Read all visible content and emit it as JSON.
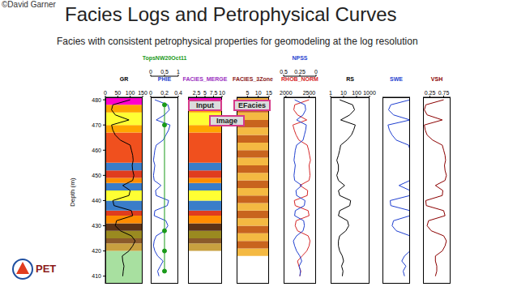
{
  "copyright": "©David Garner",
  "title": "Facies Logs and Petrophysical Curves",
  "subtitle": "Facies with consistent petrophysical properties for geomodeling at the log resolution",
  "logo_text": "PET",
  "annotations": [
    "Input",
    "EFacies",
    "Image"
  ],
  "depth_axis": {
    "label": "Depth (m)",
    "ylim": [
      407,
      481
    ],
    "yticks": [
      410,
      420,
      430,
      440,
      450,
      460,
      470,
      480
    ],
    "values": [
      410,
      412,
      414,
      416,
      418,
      420,
      422,
      424,
      426,
      428,
      430,
      432,
      434,
      436,
      438,
      440,
      442,
      444,
      446,
      448,
      450,
      452,
      454,
      456,
      458,
      460,
      462,
      464,
      466,
      468,
      470,
      472,
      474,
      476,
      478,
      480
    ]
  },
  "chart_data": [
    {
      "type": "line",
      "series": [
        {
          "name": "GR",
          "color": "#000000",
          "xlim": [
            0,
            150
          ],
          "xticks": [
            0,
            50,
            100,
            150
          ],
          "values": [
            70,
            72,
            75,
            70,
            68,
            95,
            110,
            120,
            105,
            60,
            40,
            45,
            110,
            105,
            35,
            30,
            95,
            100,
            70,
            110,
            115,
            110,
            108,
            112,
            110,
            105,
            100,
            60,
            40,
            30,
            25,
            95,
            40,
            25,
            30,
            100
          ]
        }
      ],
      "intervals": [
        {
          "top": 407,
          "base": 420,
          "color": "#a8e0a0"
        },
        {
          "top": 420,
          "base": 423,
          "color": "#c8a040"
        },
        {
          "top": 423,
          "base": 425,
          "color": "#8b5a2b"
        },
        {
          "top": 425,
          "base": 428,
          "color": "#9a8a20"
        },
        {
          "top": 428,
          "base": 431,
          "color": "#5c3317"
        },
        {
          "top": 431,
          "base": 434,
          "color": "#ff8c00"
        },
        {
          "top": 434,
          "base": 436,
          "color": "#e03c1e"
        },
        {
          "top": 436,
          "base": 440,
          "color": "#3a7dc9"
        },
        {
          "top": 440,
          "base": 444,
          "color": "#ffff33"
        },
        {
          "top": 444,
          "base": 447,
          "color": "#3a7dc9"
        },
        {
          "top": 447,
          "base": 449,
          "color": "#ff8c00"
        },
        {
          "top": 449,
          "base": 452,
          "color": "#e03c1e"
        },
        {
          "top": 452,
          "base": 455,
          "color": "#3a7dc9"
        },
        {
          "top": 455,
          "base": 467,
          "color": "#f0501e"
        },
        {
          "top": 467,
          "base": 470,
          "color": "#ffa500"
        },
        {
          "top": 470,
          "base": 475,
          "color": "#ffff33"
        },
        {
          "top": 475,
          "base": 478,
          "color": "#ffa500"
        },
        {
          "top": 478,
          "base": 481,
          "color": "#ff00cc"
        }
      ]
    },
    {
      "type": "line",
      "series": [
        {
          "name": "PHIE",
          "color": "#1f3fd0",
          "xlim": [
            0,
            0.4
          ],
          "xticks": [
            0,
            0.2,
            0.4
          ],
          "values": [
            0.12,
            0.1,
            0.14,
            0.18,
            0.1,
            0.06,
            0.04,
            0.05,
            0.08,
            0.2,
            0.25,
            0.22,
            0.05,
            0.06,
            0.24,
            0.26,
            0.08,
            0.07,
            0.15,
            0.05,
            0.04,
            0.05,
            0.06,
            0.04,
            0.05,
            0.06,
            0.08,
            0.18,
            0.22,
            0.26,
            0.28,
            0.08,
            0.2,
            0.27,
            0.25,
            0.06
          ]
        },
        {
          "name": "TopsNW20Oct11",
          "color": "#1a9a1a",
          "marker": "circle",
          "xlim": [
            0,
            1
          ],
          "xticks": [
            0,
            0.5,
            1
          ],
          "values": [
            null,
            0.5,
            null,
            null,
            null,
            0.5,
            null,
            null,
            null,
            0.5,
            null,
            null,
            null,
            null,
            null,
            null,
            null,
            null,
            null,
            null,
            null,
            null,
            null,
            null,
            null,
            null,
            null,
            null,
            null,
            null,
            0.5,
            null,
            null,
            null,
            0.5,
            null
          ]
        }
      ]
    },
    {
      "type": "intervals",
      "title": "FACIES_MERGE",
      "color": "#9b30c0",
      "xlim": [
        0,
        10
      ],
      "xticks": [
        2.5,
        5,
        7.5,
        10
      ],
      "intervals": [
        {
          "top": 420,
          "base": 423,
          "color": "#c8a040"
        },
        {
          "top": 423,
          "base": 425,
          "color": "#8b5a2b"
        },
        {
          "top": 425,
          "base": 428,
          "color": "#9a8a20"
        },
        {
          "top": 428,
          "base": 431,
          "color": "#5c3317"
        },
        {
          "top": 431,
          "base": 434,
          "color": "#ff8c00"
        },
        {
          "top": 434,
          "base": 436,
          "color": "#e03c1e"
        },
        {
          "top": 436,
          "base": 440,
          "color": "#3a7dc9"
        },
        {
          "top": 440,
          "base": 444,
          "color": "#ffff33"
        },
        {
          "top": 444,
          "base": 447,
          "color": "#3a7dc9"
        },
        {
          "top": 447,
          "base": 449,
          "color": "#ff8c00"
        },
        {
          "top": 449,
          "base": 452,
          "color": "#e03c1e"
        },
        {
          "top": 452,
          "base": 455,
          "color": "#3a7dc9"
        },
        {
          "top": 455,
          "base": 467,
          "color": "#f0501e"
        },
        {
          "top": 467,
          "base": 470,
          "color": "#ffa500"
        },
        {
          "top": 470,
          "base": 475,
          "color": "#ffff33"
        },
        {
          "top": 475,
          "base": 478,
          "color": "#ffa500"
        },
        {
          "top": 478,
          "base": 481,
          "color": "#ff00cc"
        }
      ]
    },
    {
      "type": "intervals",
      "title": "FACIES_3Zone",
      "color": "#8b1a1a",
      "xlim": [
        0,
        15
      ],
      "xticks": [
        5,
        10,
        15
      ],
      "intervals": [
        {
          "top": 418,
          "base": 421,
          "color": "#f4b942"
        },
        {
          "top": 421,
          "base": 424,
          "color": "#c8641e"
        },
        {
          "top": 424,
          "base": 427,
          "color": "#f4b942"
        },
        {
          "top": 427,
          "base": 430,
          "color": "#c8641e"
        },
        {
          "top": 430,
          "base": 433,
          "color": "#f4b942"
        },
        {
          "top": 433,
          "base": 436,
          "color": "#c8641e"
        },
        {
          "top": 436,
          "base": 439,
          "color": "#f4b942"
        },
        {
          "top": 439,
          "base": 442,
          "color": "#c8641e"
        },
        {
          "top": 442,
          "base": 445,
          "color": "#f4b942"
        },
        {
          "top": 445,
          "base": 448,
          "color": "#c8641e"
        },
        {
          "top": 448,
          "base": 451,
          "color": "#f4b942"
        },
        {
          "top": 451,
          "base": 454,
          "color": "#c8641e"
        },
        {
          "top": 454,
          "base": 457,
          "color": "#f4b942"
        },
        {
          "top": 457,
          "base": 460,
          "color": "#c8641e"
        },
        {
          "top": 460,
          "base": 463,
          "color": "#f4b942"
        },
        {
          "top": 463,
          "base": 466,
          "color": "#c8641e"
        },
        {
          "top": 466,
          "base": 469,
          "color": "#f4b942"
        },
        {
          "top": 469,
          "base": 472,
          "color": "#c8641e"
        },
        {
          "top": 472,
          "base": 475,
          "color": "#f4b942"
        },
        {
          "top": 475,
          "base": 478,
          "color": "#c8641e"
        },
        {
          "top": 478,
          "base": 481,
          "color": "#f4b942"
        }
      ]
    },
    {
      "type": "line",
      "series": [
        {
          "name": "RHOB_NORM",
          "color": "#d62728",
          "xlim": [
            1950,
            2650
          ],
          "xticks": [
            2000,
            2500
          ],
          "values": [
            2300,
            2320,
            2280,
            2250,
            2350,
            2450,
            2500,
            2520,
            2480,
            2250,
            2200,
            2220,
            2500,
            2480,
            2200,
            2180,
            2460,
            2470,
            2300,
            2500,
            2520,
            2510,
            2500,
            2530,
            2510,
            2490,
            2460,
            2280,
            2220,
            2180,
            2150,
            2450,
            2250,
            2170,
            2190,
            2500
          ]
        },
        {
          "name": "NPSS",
          "color": "#1f3fd0",
          "xlim": [
            0.5,
            0
          ],
          "xticks": [
            0.5,
            0.25,
            0
          ],
          "values": [
            0.25,
            0.24,
            0.26,
            0.22,
            0.25,
            0.3,
            0.33,
            0.35,
            0.3,
            0.2,
            0.18,
            0.19,
            0.33,
            0.32,
            0.18,
            0.17,
            0.3,
            0.31,
            0.22,
            0.33,
            0.34,
            0.33,
            0.32,
            0.34,
            0.33,
            0.32,
            0.3,
            0.2,
            0.18,
            0.16,
            0.15,
            0.3,
            0.2,
            0.16,
            0.17,
            0.33
          ]
        }
      ]
    },
    {
      "type": "line",
      "log": "x",
      "series": [
        {
          "name": "RS",
          "color": "#000000",
          "xlim": [
            1,
            1000
          ],
          "xticks": [
            1,
            10,
            100,
            1000
          ],
          "values": [
            8,
            9,
            7,
            10,
            8,
            5,
            4,
            4,
            5,
            15,
            25,
            20,
            4,
            5,
            30,
            35,
            5,
            4,
            12,
            4,
            3,
            4,
            4,
            3,
            4,
            5,
            6,
            18,
            40,
            60,
            80,
            6,
            30,
            70,
            50,
            5
          ]
        }
      ]
    },
    {
      "type": "line",
      "tick_labels": false,
      "series": [
        {
          "name": "SWE",
          "color": "#1f3fd0",
          "xlim": [
            0,
            1
          ],
          "values": [
            0.8,
            0.75,
            0.85,
            0.7,
            0.8,
            1,
            1,
            1,
            1,
            0.5,
            0.35,
            0.4,
            1,
            1,
            0.3,
            0.28,
            1,
            1,
            0.6,
            1,
            1,
            1,
            1,
            1,
            1,
            1,
            0.95,
            0.5,
            0.35,
            0.25,
            0.2,
            1,
            0.4,
            0.22,
            0.3,
            1
          ]
        }
      ]
    },
    {
      "type": "line",
      "series": [
        {
          "name": "VSH",
          "color": "#8b0000",
          "xlim": [
            0,
            1
          ],
          "xticks": [
            0.25,
            0.75
          ],
          "values": [
            0.45,
            0.5,
            0.5,
            0.45,
            0.45,
            0.7,
            0.8,
            0.85,
            0.75,
            0.3,
            0.15,
            0.2,
            0.8,
            0.75,
            0.12,
            0.1,
            0.7,
            0.72,
            0.45,
            0.8,
            0.85,
            0.8,
            0.78,
            0.82,
            0.8,
            0.75,
            0.7,
            0.35,
            0.15,
            0.08,
            0.05,
            0.7,
            0.15,
            0.05,
            0.1,
            0.75
          ]
        }
      ]
    }
  ]
}
